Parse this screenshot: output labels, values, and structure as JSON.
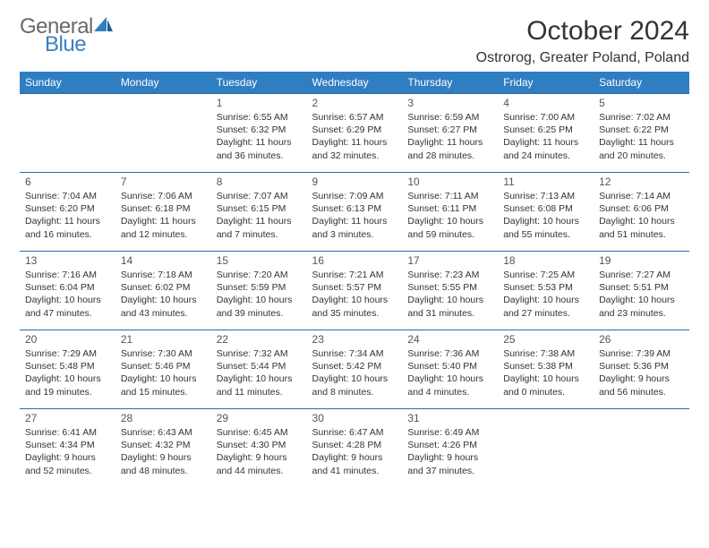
{
  "logo": {
    "general": "General",
    "blue": "Blue"
  },
  "header": {
    "title": "October 2024",
    "location": "Ostrorog, Greater Poland, Poland"
  },
  "colors": {
    "header_bg": "#2f7ec2",
    "header_text": "#ffffff",
    "row_border": "#2b6aa8",
    "logo_gray": "#6a6a6a",
    "logo_blue": "#3a7fc4"
  },
  "weekdays": [
    "Sunday",
    "Monday",
    "Tuesday",
    "Wednesday",
    "Thursday",
    "Friday",
    "Saturday"
  ],
  "weeks": [
    [
      null,
      null,
      {
        "d": "1",
        "sr": "Sunrise: 6:55 AM",
        "ss": "Sunset: 6:32 PM",
        "dl1": "Daylight: 11 hours",
        "dl2": "and 36 minutes."
      },
      {
        "d": "2",
        "sr": "Sunrise: 6:57 AM",
        "ss": "Sunset: 6:29 PM",
        "dl1": "Daylight: 11 hours",
        "dl2": "and 32 minutes."
      },
      {
        "d": "3",
        "sr": "Sunrise: 6:59 AM",
        "ss": "Sunset: 6:27 PM",
        "dl1": "Daylight: 11 hours",
        "dl2": "and 28 minutes."
      },
      {
        "d": "4",
        "sr": "Sunrise: 7:00 AM",
        "ss": "Sunset: 6:25 PM",
        "dl1": "Daylight: 11 hours",
        "dl2": "and 24 minutes."
      },
      {
        "d": "5",
        "sr": "Sunrise: 7:02 AM",
        "ss": "Sunset: 6:22 PM",
        "dl1": "Daylight: 11 hours",
        "dl2": "and 20 minutes."
      }
    ],
    [
      {
        "d": "6",
        "sr": "Sunrise: 7:04 AM",
        "ss": "Sunset: 6:20 PM",
        "dl1": "Daylight: 11 hours",
        "dl2": "and 16 minutes."
      },
      {
        "d": "7",
        "sr": "Sunrise: 7:06 AM",
        "ss": "Sunset: 6:18 PM",
        "dl1": "Daylight: 11 hours",
        "dl2": "and 12 minutes."
      },
      {
        "d": "8",
        "sr": "Sunrise: 7:07 AM",
        "ss": "Sunset: 6:15 PM",
        "dl1": "Daylight: 11 hours",
        "dl2": "and 7 minutes."
      },
      {
        "d": "9",
        "sr": "Sunrise: 7:09 AM",
        "ss": "Sunset: 6:13 PM",
        "dl1": "Daylight: 11 hours",
        "dl2": "and 3 minutes."
      },
      {
        "d": "10",
        "sr": "Sunrise: 7:11 AM",
        "ss": "Sunset: 6:11 PM",
        "dl1": "Daylight: 10 hours",
        "dl2": "and 59 minutes."
      },
      {
        "d": "11",
        "sr": "Sunrise: 7:13 AM",
        "ss": "Sunset: 6:08 PM",
        "dl1": "Daylight: 10 hours",
        "dl2": "and 55 minutes."
      },
      {
        "d": "12",
        "sr": "Sunrise: 7:14 AM",
        "ss": "Sunset: 6:06 PM",
        "dl1": "Daylight: 10 hours",
        "dl2": "and 51 minutes."
      }
    ],
    [
      {
        "d": "13",
        "sr": "Sunrise: 7:16 AM",
        "ss": "Sunset: 6:04 PM",
        "dl1": "Daylight: 10 hours",
        "dl2": "and 47 minutes."
      },
      {
        "d": "14",
        "sr": "Sunrise: 7:18 AM",
        "ss": "Sunset: 6:02 PM",
        "dl1": "Daylight: 10 hours",
        "dl2": "and 43 minutes."
      },
      {
        "d": "15",
        "sr": "Sunrise: 7:20 AM",
        "ss": "Sunset: 5:59 PM",
        "dl1": "Daylight: 10 hours",
        "dl2": "and 39 minutes."
      },
      {
        "d": "16",
        "sr": "Sunrise: 7:21 AM",
        "ss": "Sunset: 5:57 PM",
        "dl1": "Daylight: 10 hours",
        "dl2": "and 35 minutes."
      },
      {
        "d": "17",
        "sr": "Sunrise: 7:23 AM",
        "ss": "Sunset: 5:55 PM",
        "dl1": "Daylight: 10 hours",
        "dl2": "and 31 minutes."
      },
      {
        "d": "18",
        "sr": "Sunrise: 7:25 AM",
        "ss": "Sunset: 5:53 PM",
        "dl1": "Daylight: 10 hours",
        "dl2": "and 27 minutes."
      },
      {
        "d": "19",
        "sr": "Sunrise: 7:27 AM",
        "ss": "Sunset: 5:51 PM",
        "dl1": "Daylight: 10 hours",
        "dl2": "and 23 minutes."
      }
    ],
    [
      {
        "d": "20",
        "sr": "Sunrise: 7:29 AM",
        "ss": "Sunset: 5:48 PM",
        "dl1": "Daylight: 10 hours",
        "dl2": "and 19 minutes."
      },
      {
        "d": "21",
        "sr": "Sunrise: 7:30 AM",
        "ss": "Sunset: 5:46 PM",
        "dl1": "Daylight: 10 hours",
        "dl2": "and 15 minutes."
      },
      {
        "d": "22",
        "sr": "Sunrise: 7:32 AM",
        "ss": "Sunset: 5:44 PM",
        "dl1": "Daylight: 10 hours",
        "dl2": "and 11 minutes."
      },
      {
        "d": "23",
        "sr": "Sunrise: 7:34 AM",
        "ss": "Sunset: 5:42 PM",
        "dl1": "Daylight: 10 hours",
        "dl2": "and 8 minutes."
      },
      {
        "d": "24",
        "sr": "Sunrise: 7:36 AM",
        "ss": "Sunset: 5:40 PM",
        "dl1": "Daylight: 10 hours",
        "dl2": "and 4 minutes."
      },
      {
        "d": "25",
        "sr": "Sunrise: 7:38 AM",
        "ss": "Sunset: 5:38 PM",
        "dl1": "Daylight: 10 hours",
        "dl2": "and 0 minutes."
      },
      {
        "d": "26",
        "sr": "Sunrise: 7:39 AM",
        "ss": "Sunset: 5:36 PM",
        "dl1": "Daylight: 9 hours",
        "dl2": "and 56 minutes."
      }
    ],
    [
      {
        "d": "27",
        "sr": "Sunrise: 6:41 AM",
        "ss": "Sunset: 4:34 PM",
        "dl1": "Daylight: 9 hours",
        "dl2": "and 52 minutes."
      },
      {
        "d": "28",
        "sr": "Sunrise: 6:43 AM",
        "ss": "Sunset: 4:32 PM",
        "dl1": "Daylight: 9 hours",
        "dl2": "and 48 minutes."
      },
      {
        "d": "29",
        "sr": "Sunrise: 6:45 AM",
        "ss": "Sunset: 4:30 PM",
        "dl1": "Daylight: 9 hours",
        "dl2": "and 44 minutes."
      },
      {
        "d": "30",
        "sr": "Sunrise: 6:47 AM",
        "ss": "Sunset: 4:28 PM",
        "dl1": "Daylight: 9 hours",
        "dl2": "and 41 minutes."
      },
      {
        "d": "31",
        "sr": "Sunrise: 6:49 AM",
        "ss": "Sunset: 4:26 PM",
        "dl1": "Daylight: 9 hours",
        "dl2": "and 37 minutes."
      },
      null,
      null
    ]
  ]
}
